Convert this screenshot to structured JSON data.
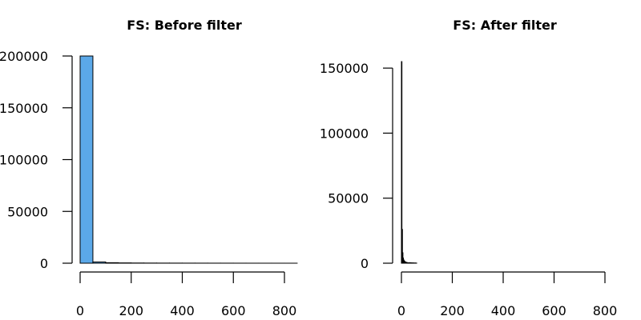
{
  "chart_data": [
    {
      "type": "bar",
      "title": "FS: Before filter",
      "xlabel": "",
      "ylabel": "",
      "bar_color": "#5ba8e8",
      "edge_color": "#000000",
      "xlim": [
        0,
        800
      ],
      "ylim": [
        0,
        200000
      ],
      "x_ticks": [
        0,
        200,
        400,
        600,
        800
      ],
      "x_tick_labels": [
        "0",
        "200",
        "400",
        "600",
        "800"
      ],
      "y_ticks": [
        0,
        50000,
        100000,
        150000,
        200000
      ],
      "y_tick_labels": [
        "0",
        "50000",
        "100000",
        "150000",
        "200000"
      ],
      "bin_edges": [
        0,
        50,
        100,
        150,
        200,
        250,
        300,
        350,
        400,
        450,
        500,
        550,
        600,
        650,
        700,
        750,
        800,
        850
      ],
      "values": [
        200000,
        1200,
        500,
        300,
        200,
        150,
        120,
        100,
        80,
        70,
        60,
        50,
        40,
        30,
        20,
        15,
        10
      ]
    },
    {
      "type": "bar",
      "title": "FS: After filter",
      "xlabel": "",
      "ylabel": "",
      "bar_color": "#5ba8e8",
      "edge_color": "#000000",
      "xlim": [
        0,
        800
      ],
      "ylim": [
        0,
        155000
      ],
      "x_ticks": [
        0,
        200,
        400,
        600,
        800
      ],
      "x_tick_labels": [
        "0",
        "200",
        "400",
        "600",
        "800"
      ],
      "y_ticks": [
        0,
        50000,
        100000,
        150000
      ],
      "y_tick_labels": [
        "0",
        "50000",
        "100000",
        "150000"
      ],
      "bin_edges": [
        0,
        2,
        4,
        6,
        8,
        10,
        12,
        14,
        16,
        18,
        20,
        22,
        24,
        26,
        28,
        30,
        35,
        40,
        45,
        50,
        55,
        60
      ],
      "values": [
        155000,
        26000,
        8000,
        4000,
        2500,
        1800,
        1300,
        1000,
        800,
        650,
        500,
        420,
        350,
        300,
        250,
        400,
        300,
        250,
        200,
        150,
        120
      ]
    }
  ]
}
